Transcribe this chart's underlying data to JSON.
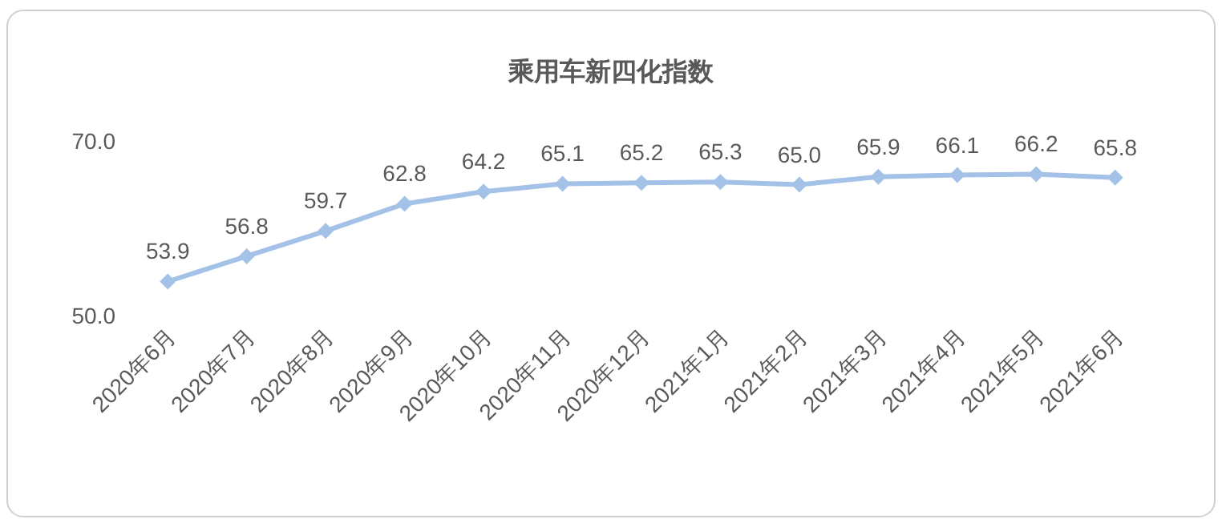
{
  "chart_data": {
    "type": "line",
    "title": "乘用车新四化指数",
    "categories": [
      "2020年6月",
      "2020年7月",
      "2020年8月",
      "2020年9月",
      "2020年10月",
      "2020年11月",
      "2020年12月",
      "2021年1月",
      "2021年2月",
      "2021年3月",
      "2021年4月",
      "2021年5月",
      "2021年6月"
    ],
    "series": [
      {
        "color": "#a4c2e8",
        "values": [
          53.9,
          56.8,
          59.7,
          62.8,
          64.2,
          65.1,
          65.2,
          65.3,
          65.0,
          65.9,
          66.1,
          66.2,
          65.8
        ],
        "value_labels": [
          "53.9",
          "56.8",
          "59.7",
          "62.8",
          "64.2",
          "65.1",
          "65.2",
          "65.3",
          "65.0",
          "65.9",
          "66.1",
          "66.2",
          "65.8"
        ]
      }
    ],
    "ylim": [
      50,
      70
    ],
    "yticks": [
      {
        "value": 50,
        "label": "50.0"
      },
      {
        "value": 70,
        "label": "70.0"
      }
    ],
    "marker": "diamond",
    "line_style": "solid"
  }
}
